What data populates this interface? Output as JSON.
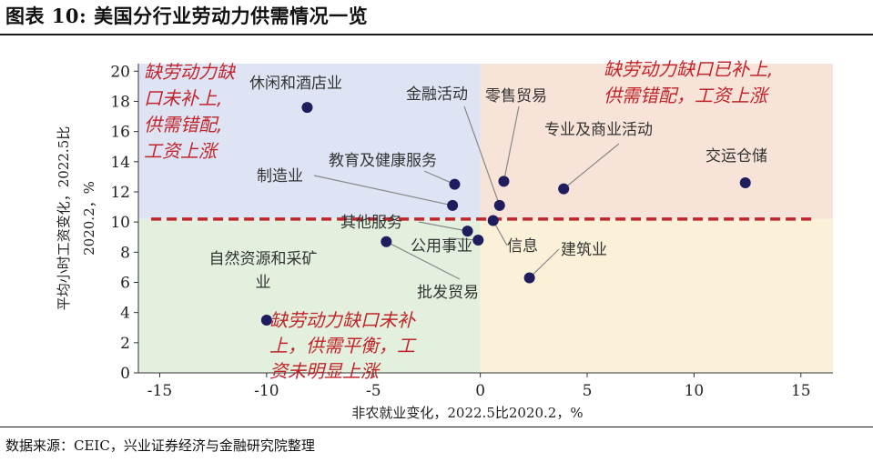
{
  "title": "图表 10:  美国分行业劳动力供需情况一览",
  "source": "数据来源：CEIC，兴业证券经济与金融研究院整理",
  "colors": {
    "quad_top_left": "#dfe4f5",
    "quad_top_right": "#f8e3d8",
    "quad_bottom_left": "#e3f0dd",
    "quad_bottom_right": "#fbf1d8",
    "point": "#1f1d5e",
    "dashed_line": "#c0252b",
    "annotation": "#c0252b",
    "leader": "#888888"
  },
  "chart_data": {
    "type": "scatter",
    "xlabel": "非农就业变化，2022.5比2020.2，%",
    "ylabel_line1": "平均小时工资变化，2022.5比",
    "ylabel_line2": "2020.2，%",
    "xlim": [
      -16,
      16.5
    ],
    "ylim": [
      0,
      20.5
    ],
    "x_ticks": [
      -15,
      -10,
      -5,
      0,
      5,
      10,
      15
    ],
    "x_tick_labels": [
      "-15",
      "-10",
      "-5",
      "0",
      "5",
      "10",
      "15"
    ],
    "y_ticks": [
      0,
      2,
      4,
      6,
      8,
      10,
      12,
      14,
      16,
      18,
      20
    ],
    "y_tick_labels": [
      "0",
      "2",
      "4",
      "6",
      "8",
      "10",
      "12",
      "14",
      "16",
      "18",
      "20"
    ],
    "quadrant_split": {
      "x": 0,
      "y": 10.2
    },
    "dashed_line_y": 10.2,
    "points": [
      {
        "name": "休闲和酒店业",
        "x": -8.1,
        "y": 17.6
      },
      {
        "name": "交运仓储",
        "x": 12.4,
        "y": 12.6
      },
      {
        "name": "专业及商业活动",
        "x": 3.9,
        "y": 12.2
      },
      {
        "name": "零售贸易",
        "x": 1.1,
        "y": 12.7
      },
      {
        "name": "金融活动",
        "x": 0.9,
        "y": 11.1
      },
      {
        "name": "教育及健康服务",
        "x": -1.2,
        "y": 12.5
      },
      {
        "name": "制造业",
        "x": -1.3,
        "y": 11.1
      },
      {
        "name": "信息",
        "x": 0.6,
        "y": 10.1
      },
      {
        "name": "其他服务",
        "x": -0.6,
        "y": 9.4
      },
      {
        "name": "公用事业",
        "x": -0.1,
        "y": 8.8
      },
      {
        "name": "建筑业",
        "x": 2.3,
        "y": 6.3
      },
      {
        "name": "自然资源和采矿业",
        "x": -10.0,
        "y": 3.5
      },
      {
        "name": "批发贸易",
        "x": -4.4,
        "y": 8.7
      }
    ],
    "annotations": {
      "top_left": [
        "缺劳动力缺",
        "口未补上,",
        "供需错配,",
        "工资上涨"
      ],
      "top_right": [
        "缺劳动力缺口已补上,",
        "供需错配，工资上涨"
      ],
      "bottom_left": [
        "缺劳动力缺口未补",
        "上，供需平衡，工",
        "资未明显上涨"
      ]
    }
  }
}
